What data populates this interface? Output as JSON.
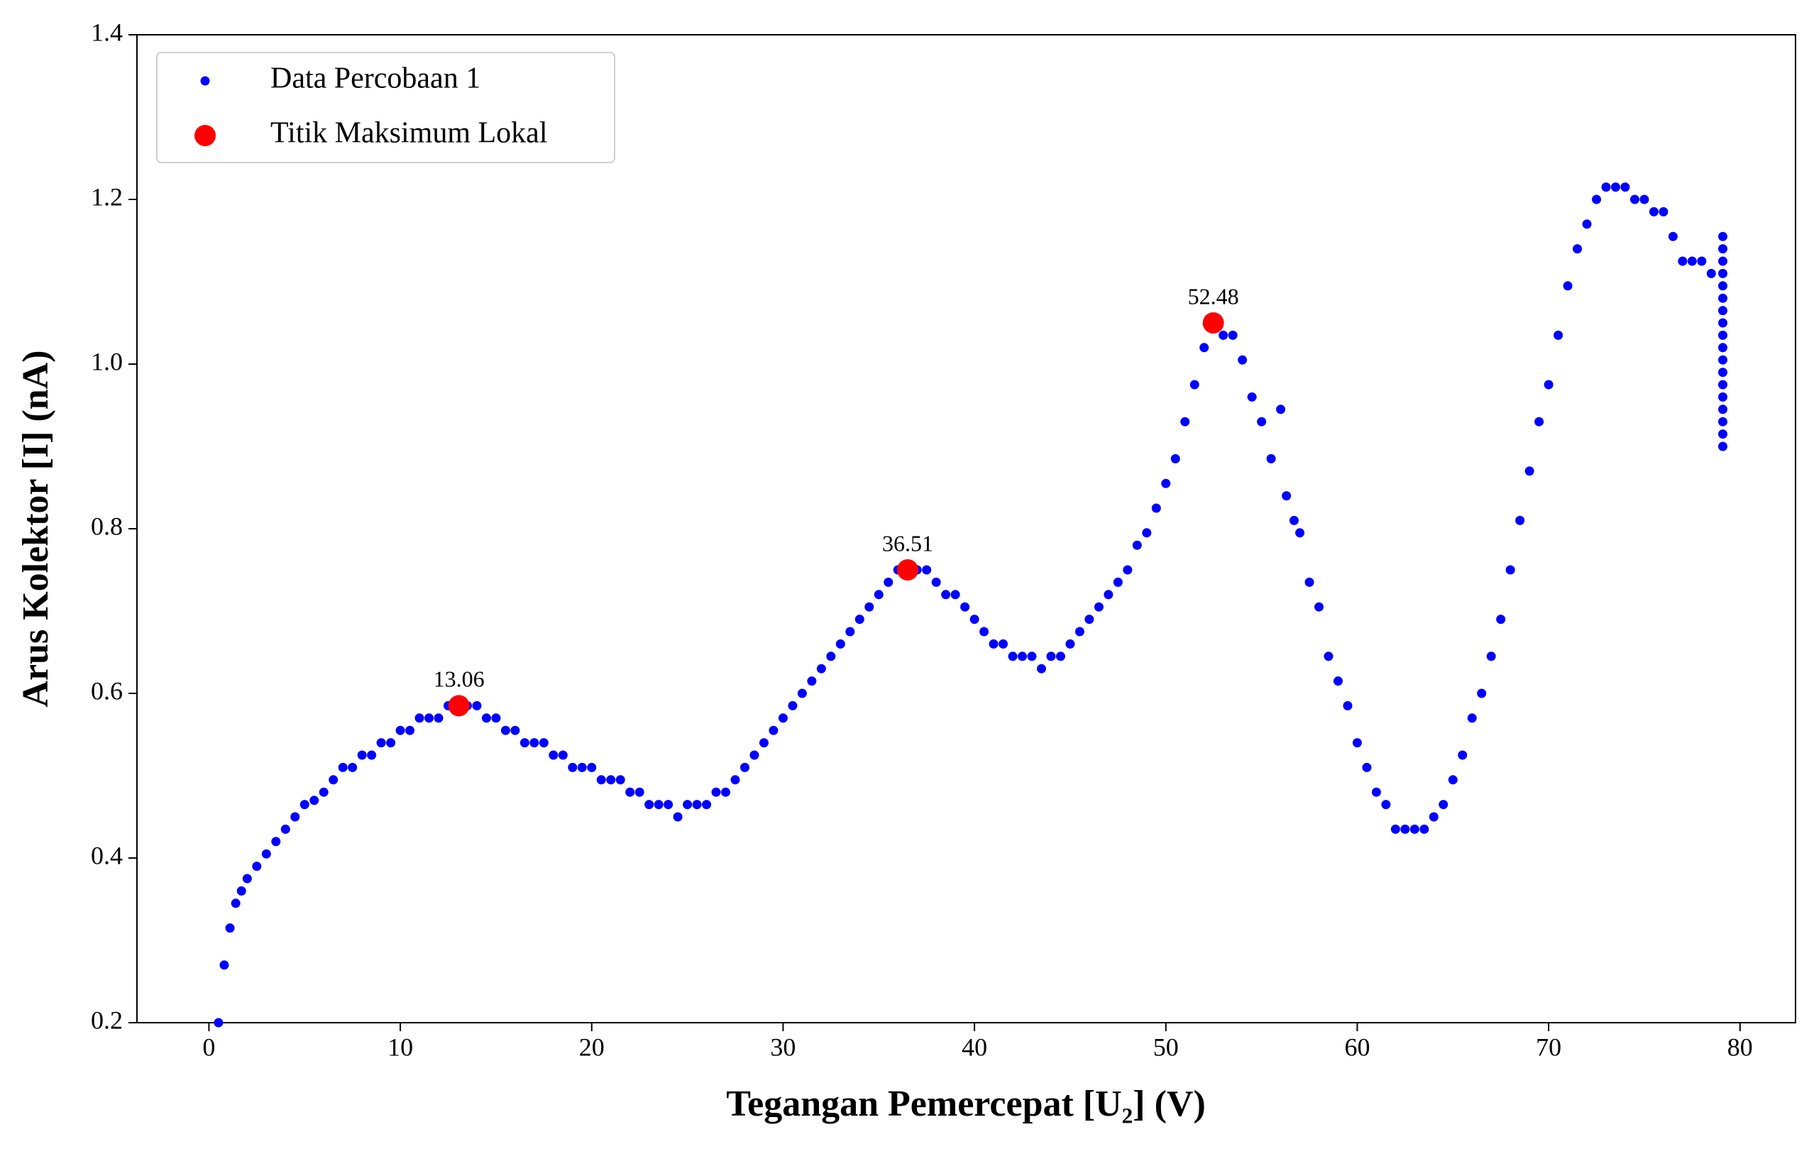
{
  "chart_data": {
    "type": "scatter",
    "xlabel": "Tegangan Pemercepat [U₂] (V)",
    "ylabel": "Arus Kolektor [I] (nA)",
    "xlim": [
      -3.76,
      82.9
    ],
    "ylim": [
      0.2,
      1.4
    ],
    "xticks": [
      0,
      10,
      20,
      30,
      40,
      50,
      60,
      70,
      80
    ],
    "yticks": [
      0.2,
      0.4,
      0.6,
      0.8,
      {
        "value": 1,
        "label": "1.0"
      },
      1.2,
      1.4
    ],
    "legend": "upper left",
    "series": [
      {
        "name": "Data Percobaan 1",
        "color": "#0000ff",
        "size": "small",
        "x": [
          0.5,
          0.8,
          1.1,
          1.4,
          1.7,
          2,
          2.5,
          3,
          3.5,
          4,
          4.5,
          5,
          5.5,
          6,
          6.5,
          7,
          7.5,
          8,
          8.5,
          9,
          9.5,
          10,
          10.5,
          11,
          11.5,
          12,
          12.5,
          13,
          13.5,
          14,
          14.5,
          15,
          15.5,
          16,
          16.5,
          17,
          17.5,
          18,
          18.5,
          19,
          19.5,
          20,
          20.5,
          21,
          21.5,
          22,
          22.5,
          23,
          23.5,
          24,
          24.5,
          25,
          25.5,
          26,
          26.5,
          27,
          27.5,
          28,
          28.5,
          29,
          29.5,
          30,
          30.5,
          31,
          31.5,
          32,
          32.5,
          33,
          33.5,
          34,
          34.5,
          35,
          35.5,
          36,
          36.5,
          37,
          37.5,
          38,
          38.5,
          39,
          39.5,
          40,
          40.5,
          41,
          41.5,
          42,
          42.5,
          43,
          43.5,
          44,
          44.5,
          45,
          45.5,
          46,
          46.5,
          47,
          47.5,
          48,
          48.5,
          49,
          49.5,
          50,
          50.5,
          51,
          51.5,
          52,
          52.5,
          53,
          53.5,
          54,
          54.5,
          55,
          55.5,
          56,
          56.3,
          56.7,
          57,
          57.5,
          58,
          58.5,
          59,
          59.5,
          60,
          60.5,
          61,
          61.5,
          62,
          62.5,
          63,
          63.5,
          64,
          64.5,
          65,
          65.5,
          66,
          66.5,
          67,
          67.5,
          68,
          68.5,
          69,
          69.5,
          70,
          70.5,
          71,
          71.5,
          72,
          72.5,
          73,
          73.5,
          74,
          74.5,
          75,
          75.5,
          76,
          76.5,
          77,
          77.5,
          78,
          78.5,
          79.1,
          79.1,
          79.1,
          79.1,
          79.1,
          79.1,
          79.1,
          79.1,
          79.1,
          79.1,
          79.1,
          79.1,
          79.1,
          79.1,
          79.1,
          79.1,
          79.1,
          79.1
        ],
        "values": [
          0.2,
          0.27,
          0.315,
          0.345,
          0.36,
          0.375,
          0.39,
          0.405,
          0.42,
          0.435,
          0.45,
          0.465,
          0.47,
          0.48,
          0.495,
          0.51,
          0.51,
          0.525,
          0.525,
          0.54,
          0.54,
          0.555,
          0.555,
          0.57,
          0.57,
          0.57,
          0.585,
          0.585,
          0.585,
          0.585,
          0.57,
          0.57,
          0.555,
          0.555,
          0.54,
          0.54,
          0.54,
          0.525,
          0.525,
          0.51,
          0.51,
          0.51,
          0.495,
          0.495,
          0.495,
          0.48,
          0.48,
          0.465,
          0.465,
          0.465,
          0.45,
          0.465,
          0.465,
          0.465,
          0.48,
          0.48,
          0.495,
          0.51,
          0.525,
          0.54,
          0.555,
          0.57,
          0.585,
          0.6,
          0.615,
          0.63,
          0.645,
          0.66,
          0.675,
          0.69,
          0.705,
          0.72,
          0.735,
          0.75,
          0.75,
          0.75,
          0.75,
          0.735,
          0.72,
          0.72,
          0.705,
          0.69,
          0.675,
          0.66,
          0.66,
          0.645,
          0.645,
          0.645,
          0.63,
          0.645,
          0.645,
          0.66,
          0.675,
          0.69,
          0.705,
          0.72,
          0.735,
          0.75,
          0.78,
          0.795,
          0.825,
          0.855,
          0.885,
          0.93,
          0.975,
          1.02,
          1.05,
          1.035,
          1.035,
          1.005,
          0.96,
          0.93,
          0.885,
          0.945,
          0.84,
          0.81,
          0.795,
          0.735,
          0.705,
          0.645,
          0.615,
          0.585,
          0.54,
          0.51,
          0.48,
          0.465,
          0.435,
          0.435,
          0.435,
          0.435,
          0.45,
          0.465,
          0.495,
          0.525,
          0.57,
          0.6,
          0.645,
          0.69,
          0.75,
          0.81,
          0.87,
          0.93,
          0.975,
          1.035,
          1.095,
          1.14,
          1.17,
          1.2,
          1.215,
          1.215,
          1.215,
          1.2,
          1.2,
          1.185,
          1.185,
          1.155,
          1.125,
          1.125,
          1.125,
          1.11,
          0.9,
          0.915,
          0.93,
          0.945,
          0.96,
          0.975,
          0.99,
          1.005,
          1.02,
          1.035,
          1.05,
          1.065,
          1.08,
          1.095,
          1.11,
          1.125,
          1.14,
          1.155
        ]
      },
      {
        "name": "Titik Maksimum Lokal",
        "color": "#ff0000",
        "size": "large",
        "annotate": true,
        "x": [
          13.06,
          36.51,
          52.48
        ],
        "values": [
          0.585,
          0.75,
          1.05
        ]
      }
    ]
  }
}
